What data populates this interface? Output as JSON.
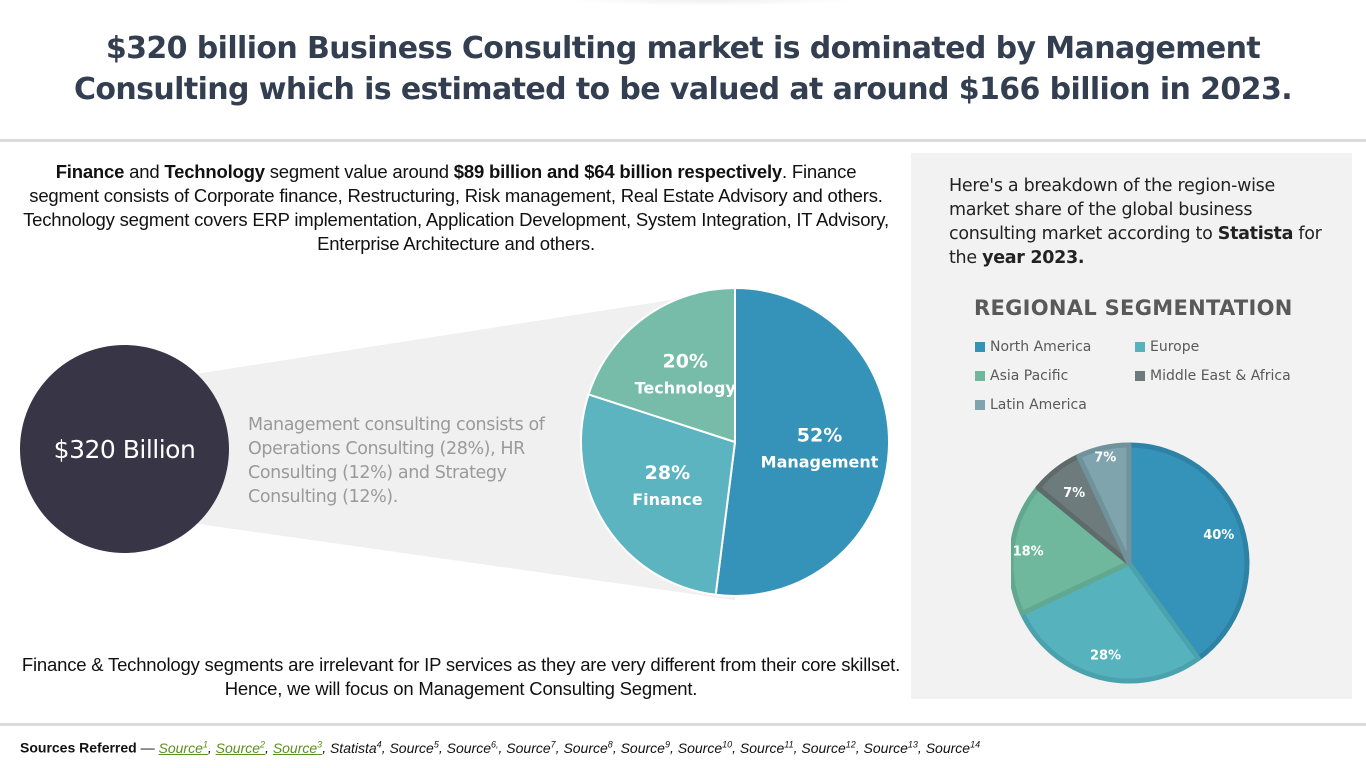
{
  "title": {
    "line1": "$320 billion Business Consulting market is dominated by Management",
    "line2": "Consulting which is estimated to be valued at around $166 billion in 2023."
  },
  "intro": {
    "bold1": "Finance",
    "t1": " and ",
    "bold2": "Technology",
    "t2": " segment value around ",
    "bold3": "$89 billion and $64 billion respectively",
    "t3": ". Finance segment consists of Corporate finance, Restructuring, Risk management, Real Estate Advisory and others. Technology segment covers ERP implementation, Application Development, System Integration, IT Advisory, Enterprise Architecture and others."
  },
  "total_circle": {
    "label": "$320 Billion"
  },
  "management_note": "Management consulting consists of Operations Consulting (28%), HR Consulting (12%) and Strategy Consulting (12%).",
  "conclusion": "Finance & Technology segments are irrelevant for IP services as they are very different from their core skillset. Hence, we will focus on Management Consulting Segment.",
  "right_panel": {
    "t1": "Here's a breakdown of the region-wise market share of the global business consulting market according to ",
    "bold1": "Statista",
    "t2": " for the ",
    "bold2": "year 2023."
  },
  "sources": {
    "label": "Sources Referred",
    "dash": " — ",
    "items": [
      {
        "text": "Source",
        "sup": "1",
        "link": true
      },
      {
        "text": "Source",
        "sup": "2",
        "link": true
      },
      {
        "text": "Source",
        "sup": "3",
        "link": true
      },
      {
        "text": "Statista",
        "sup": "4",
        "link": false
      },
      {
        "text": "Source",
        "sup": "5",
        "link": false
      },
      {
        "text": "Source",
        "sup": "6,",
        "link": false
      },
      {
        "text": "Source",
        "sup": "7",
        "link": false
      },
      {
        "text": "Source",
        "sup": "8",
        "link": false
      },
      {
        "text": "Source",
        "sup": "9",
        "link": false
      },
      {
        "text": "Source",
        "sup": "10",
        "link": false
      },
      {
        "text": "Source",
        "sup": "11",
        "link": false
      },
      {
        "text": "Source",
        "sup": "12",
        "link": false
      },
      {
        "text": "Source",
        "sup": "13",
        "link": false
      },
      {
        "text": "Source",
        "sup": "14",
        "link": false
      }
    ]
  },
  "chart_data": [
    {
      "type": "pie",
      "title": "",
      "categories": [
        "Management",
        "Finance",
        "Technology"
      ],
      "values": [
        52,
        28,
        20
      ],
      "labels": [
        "52%",
        "28%",
        "20%"
      ],
      "colors": [
        "#3592b8",
        "#5bb4c0",
        "#77bca8"
      ],
      "start": "12 o'clock, clockwise"
    },
    {
      "type": "pie",
      "title": "REGIONAL SEGMENTATION",
      "categories": [
        "North America",
        "Europe",
        "Asia Pacific",
        "Middle East & Africa",
        "Latin America"
      ],
      "values": [
        40,
        28,
        18,
        7,
        7
      ],
      "labels": [
        "40%",
        "28%",
        "18%",
        "7%",
        "7%"
      ],
      "colors": [
        "#3592b8",
        "#56b3be",
        "#6fb89e",
        "#6e7b7c",
        "#7fa4ae"
      ],
      "legend": "top",
      "start": "12 o'clock, clockwise"
    }
  ]
}
